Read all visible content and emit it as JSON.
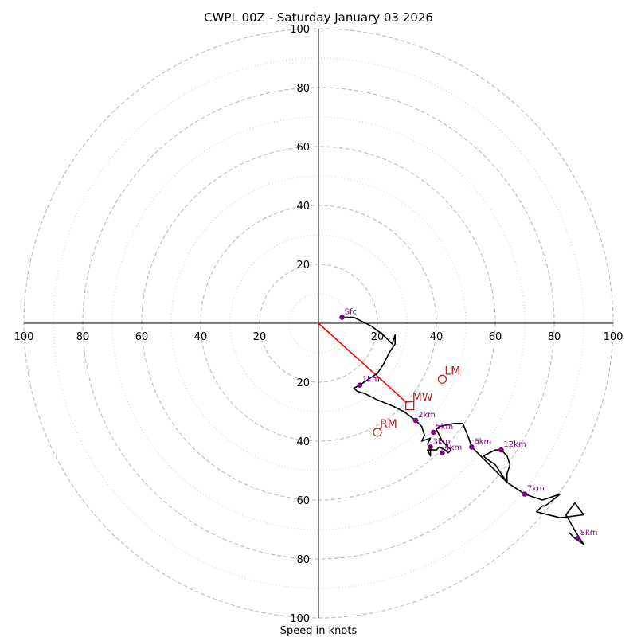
{
  "chart_data": {
    "type": "hodograph",
    "title": "CWPL 00Z - Saturday January 03 2026",
    "xlabel": "Speed in knots",
    "units": "knots",
    "max_speed": 100,
    "rings_major": [
      20,
      40,
      60,
      80,
      100
    ],
    "rings_minor": [
      10,
      30,
      50,
      70,
      90
    ],
    "ticks": {
      "left": [
        "100",
        "80",
        "60",
        "40",
        "20"
      ],
      "right": [
        "20",
        "40",
        "60",
        "80",
        "100"
      ],
      "top": [
        "20",
        "40",
        "60",
        "80",
        "100"
      ],
      "bottom": [
        "20",
        "40",
        "60",
        "80",
        "100"
      ]
    },
    "colors": {
      "trace": "#000000",
      "height_marker": "#800080",
      "storm_motion": "#b22222",
      "mean_wind_line": "#ff0000",
      "rings": "#bbbbbb"
    },
    "trace_uv": [
      [
        8,
        2
      ],
      [
        12,
        2
      ],
      [
        14,
        1
      ],
      [
        18,
        -1
      ],
      [
        22,
        -4
      ],
      [
        25,
        -7
      ],
      [
        26,
        -4
      ],
      [
        26,
        -7
      ],
      [
        24,
        -10
      ],
      [
        22,
        -14
      ],
      [
        20,
        -17
      ],
      [
        17,
        -19
      ],
      [
        14,
        -21
      ],
      [
        12,
        -22
      ],
      [
        13,
        -23
      ],
      [
        16,
        -24
      ],
      [
        20,
        -26
      ],
      [
        25,
        -28
      ],
      [
        29,
        -30
      ],
      [
        33,
        -33
      ],
      [
        35,
        -35
      ],
      [
        36,
        -38
      ],
      [
        35,
        -40
      ],
      [
        38,
        -39
      ],
      [
        37,
        -41
      ],
      [
        38,
        -43
      ],
      [
        38,
        -45
      ],
      [
        37,
        -43
      ],
      [
        40,
        -43
      ],
      [
        41,
        -42
      ],
      [
        43,
        -43
      ],
      [
        44,
        -44
      ],
      [
        45,
        -43
      ],
      [
        42,
        -40
      ],
      [
        40,
        -36
      ],
      [
        41,
        -35
      ],
      [
        46,
        -34
      ],
      [
        49,
        -34
      ],
      [
        51,
        -39
      ],
      [
        52,
        -42
      ],
      [
        55,
        -45
      ],
      [
        58,
        -48
      ],
      [
        61,
        -51
      ],
      [
        64,
        -54
      ],
      [
        62,
        -51
      ],
      [
        60,
        -48
      ],
      [
        57,
        -46
      ],
      [
        56,
        -45
      ],
      [
        60,
        -43
      ],
      [
        62,
        -43
      ],
      [
        64,
        -45
      ],
      [
        65,
        -48
      ],
      [
        64,
        -51
      ],
      [
        64,
        -54
      ],
      [
        70,
        -58
      ],
      [
        76,
        -60
      ],
      [
        82,
        -58
      ],
      [
        77,
        -62
      ],
      [
        76,
        -62
      ],
      [
        74,
        -64
      ],
      [
        82,
        -66
      ],
      [
        90,
        -65
      ],
      [
        87,
        -61
      ],
      [
        84,
        -65
      ],
      [
        88,
        -72
      ],
      [
        90,
        -75
      ],
      [
        87,
        -73
      ],
      [
        85,
        -71
      ]
    ],
    "height_markers": [
      {
        "label": "Sfc",
        "u": 8,
        "v": 2
      },
      {
        "label": "1km",
        "u": 14,
        "v": -21
      },
      {
        "label": "2km",
        "u": 33,
        "v": -33
      },
      {
        "label": "3km",
        "u": 38,
        "v": -42
      },
      {
        "label": "4km",
        "u": 42,
        "v": -44
      },
      {
        "label": "5km",
        "u": 39,
        "v": -37
      },
      {
        "label": "6km",
        "u": 52,
        "v": -42
      },
      {
        "label": "7km",
        "u": 70,
        "v": -58
      },
      {
        "label": "8km",
        "u": 88,
        "v": -73
      },
      {
        "label": "12km",
        "u": 62,
        "v": -43
      }
    ],
    "storm_motion": [
      {
        "label": "LM",
        "u": 42,
        "v": -19,
        "marker": "circle"
      },
      {
        "label": "MW",
        "u": 31,
        "v": -28,
        "marker": "square"
      },
      {
        "label": "RM",
        "u": 20,
        "v": -37,
        "marker": "circle"
      }
    ],
    "mean_wind_line": {
      "from": [
        0,
        0
      ],
      "to": [
        30,
        -27
      ]
    }
  }
}
